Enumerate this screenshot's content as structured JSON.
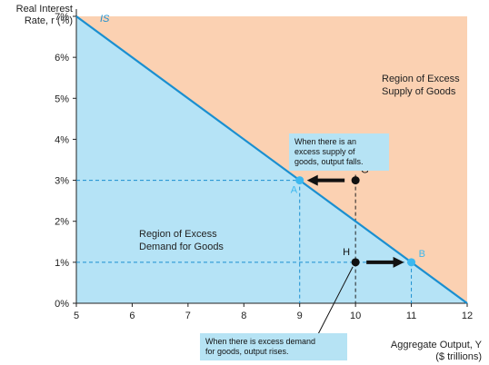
{
  "chart_data": {
    "type": "line",
    "title": "",
    "ylabel_line1": "Real Interest",
    "ylabel_line2": "Rate, r (%)",
    "xlabel_line1": "Aggregate Output, Y",
    "xlabel_line2": "($ trillions)",
    "xlim": [
      5,
      12
    ],
    "ylim": [
      0,
      7
    ],
    "x_ticks": [
      5,
      6,
      7,
      8,
      9,
      10,
      11,
      12
    ],
    "y_ticks": [
      {
        "value": 0,
        "label": "0%"
      },
      {
        "value": 1,
        "label": "1%"
      },
      {
        "value": 2,
        "label": "2%"
      },
      {
        "value": 3,
        "label": "3%"
      },
      {
        "value": 4,
        "label": "4%"
      },
      {
        "value": 5,
        "label": "5%"
      },
      {
        "value": 6,
        "label": "6%"
      },
      {
        "value": 7,
        "label": "7%"
      }
    ],
    "series": [
      {
        "name": "IS",
        "x": [
          5,
          12
        ],
        "y": [
          7,
          0
        ],
        "color": "#1a8fd0"
      }
    ],
    "points": [
      {
        "label": "A",
        "x": 9,
        "y": 3,
        "color": "#3cb8ef",
        "on_curve": true
      },
      {
        "label": "B",
        "x": 11,
        "y": 1,
        "color": "#3cb8ef",
        "on_curve": true
      },
      {
        "label": "G",
        "x": 10,
        "y": 3,
        "color": "#111111",
        "on_curve": false
      },
      {
        "label": "H",
        "x": 10,
        "y": 1,
        "color": "#111111",
        "on_curve": false
      }
    ],
    "arrows": [
      {
        "from": [
          10,
          3
        ],
        "to": [
          9,
          3
        ],
        "direction": "left"
      },
      {
        "from": [
          10,
          1
        ],
        "to": [
          11,
          1
        ],
        "direction": "right"
      }
    ],
    "regions": {
      "above": {
        "line1": "Region of Excess",
        "line2": "Supply of Goods",
        "color": "#fbd1b2"
      },
      "below": {
        "line1": "Region of Excess",
        "line2": "Demand for Goods",
        "color": "#b5e3f6"
      }
    },
    "annotations": {
      "top_box": [
        "When there is an",
        "excess supply of",
        "goods, output falls."
      ],
      "bottom_box": [
        "When there is excess demand",
        "for goods, output rises."
      ]
    },
    "colors": {
      "curve": "#1a8fd0",
      "guide": "#1a8fd0",
      "callout_bg": "#b6e3f4"
    }
  }
}
